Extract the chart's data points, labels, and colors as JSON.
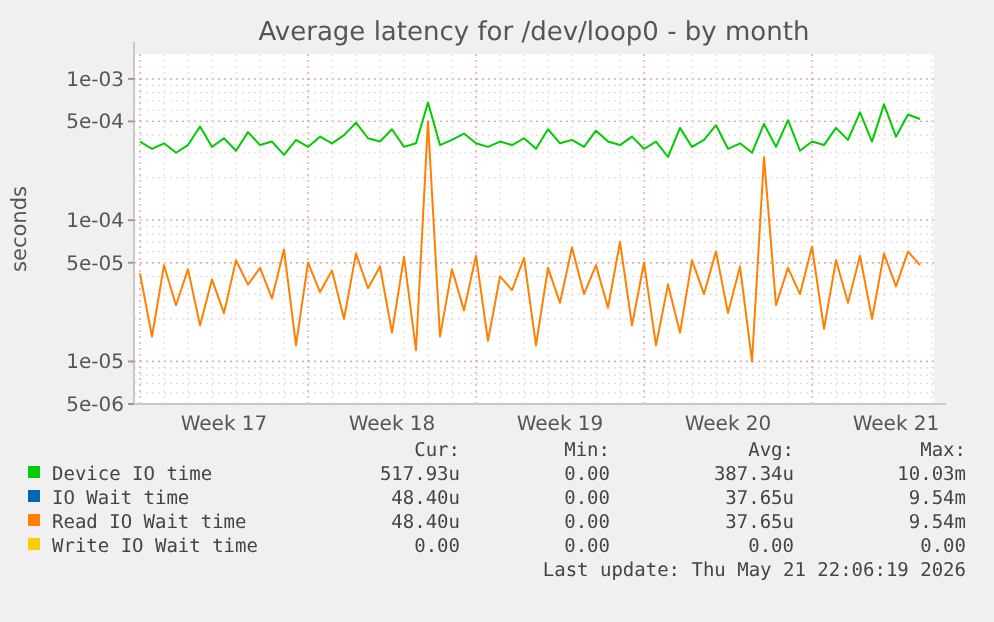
{
  "chart_data": {
    "type": "line",
    "title": "Average latency for /dev/loop0 - by month",
    "ylabel": "seconds",
    "log": "y",
    "grid": true,
    "legend": "bottom",
    "marker": "none",
    "xlim": [
      "2026-04-18T18:00",
      "2026-05-22T02:00"
    ],
    "xticks": [
      {
        "value": "2026-04-22T12:00",
        "label": "Week 17"
      },
      {
        "value": "2026-04-29T12:00",
        "label": "Week 18"
      },
      {
        "value": "2026-05-06T12:00",
        "label": "Week 19"
      },
      {
        "value": "2026-05-13T12:00",
        "label": "Week 20"
      },
      {
        "value": "2026-05-20T12:00",
        "label": "Week 21"
      }
    ],
    "ylim": [
      5e-06,
      0.0015
    ],
    "yticks": [
      {
        "value": 5e-06,
        "label": "5e-06"
      },
      {
        "value": 1e-05,
        "label": "1e-05"
      },
      {
        "value": 5e-05,
        "label": "5e-05"
      },
      {
        "value": 0.0001,
        "label": "1e-04"
      },
      {
        "value": 0.0005,
        "label": "5e-04"
      },
      {
        "value": 0.001,
        "label": "1e-03"
      }
    ],
    "x": [
      "2026-04-19T00:00",
      "2026-04-19T12:00",
      "2026-04-20T00:00",
      "2026-04-20T12:00",
      "2026-04-21T00:00",
      "2026-04-21T12:00",
      "2026-04-22T00:00",
      "2026-04-22T12:00",
      "2026-04-23T00:00",
      "2026-04-23T12:00",
      "2026-04-24T00:00",
      "2026-04-24T12:00",
      "2026-04-25T00:00",
      "2026-04-25T12:00",
      "2026-04-26T00:00",
      "2026-04-26T12:00",
      "2026-04-27T00:00",
      "2026-04-27T12:00",
      "2026-04-28T00:00",
      "2026-04-28T12:00",
      "2026-04-29T00:00",
      "2026-04-29T12:00",
      "2026-04-30T00:00",
      "2026-04-30T12:00",
      "2026-05-01T00:00",
      "2026-05-01T12:00",
      "2026-05-02T00:00",
      "2026-05-02T12:00",
      "2026-05-03T00:00",
      "2026-05-03T12:00",
      "2026-05-04T00:00",
      "2026-05-04T12:00",
      "2026-05-05T00:00",
      "2026-05-05T12:00",
      "2026-05-06T00:00",
      "2026-05-06T12:00",
      "2026-05-07T00:00",
      "2026-05-07T12:00",
      "2026-05-08T00:00",
      "2026-05-08T12:00",
      "2026-05-09T00:00",
      "2026-05-09T12:00",
      "2026-05-10T00:00",
      "2026-05-10T12:00",
      "2026-05-11T00:00",
      "2026-05-11T12:00",
      "2026-05-12T00:00",
      "2026-05-12T12:00",
      "2026-05-13T00:00",
      "2026-05-13T12:00",
      "2026-05-14T00:00",
      "2026-05-14T12:00",
      "2026-05-15T00:00",
      "2026-05-15T12:00",
      "2026-05-16T00:00",
      "2026-05-16T12:00",
      "2026-05-17T00:00",
      "2026-05-17T12:00",
      "2026-05-18T00:00",
      "2026-05-18T12:00",
      "2026-05-19T00:00",
      "2026-05-19T12:00",
      "2026-05-20T00:00",
      "2026-05-20T12:00",
      "2026-05-21T00:00",
      "2026-05-21T12:00"
    ],
    "series": [
      {
        "name": "Device IO time",
        "color": "#00cc00",
        "values": [
          0.00036,
          0.00032,
          0.00035,
          0.0003,
          0.00034,
          0.00046,
          0.00033,
          0.00038,
          0.00031,
          0.00042,
          0.00034,
          0.00036,
          0.00029,
          0.00037,
          0.00033,
          0.00039,
          0.00035,
          0.0004,
          0.00049,
          0.00038,
          0.00036,
          0.00044,
          0.00033,
          0.00035,
          0.00068,
          0.00034,
          0.00037,
          0.00041,
          0.00035,
          0.00033,
          0.00036,
          0.00034,
          0.00038,
          0.00032,
          0.00044,
          0.00035,
          0.00037,
          0.00033,
          0.00043,
          0.00036,
          0.00034,
          0.00039,
          0.00032,
          0.00036,
          0.00028,
          0.00045,
          0.00033,
          0.00037,
          0.00047,
          0.00032,
          0.00035,
          0.0003,
          0.00048,
          0.00033,
          0.00051,
          0.00031,
          0.00036,
          0.00034,
          0.00045,
          0.00037,
          0.00058,
          0.00036,
          0.00066,
          0.00039,
          0.00056,
          0.00052
        ]
      },
      {
        "name": "IO Wait time",
        "color": "#0066b3",
        "values": [
          null,
          null,
          null,
          null,
          null,
          null,
          null,
          null,
          null,
          null,
          null,
          null,
          null,
          null,
          null,
          null,
          null,
          null,
          null,
          null,
          null,
          null,
          null,
          null,
          null,
          null,
          null,
          null,
          null,
          null,
          null,
          null,
          null,
          null,
          null,
          null,
          null,
          null,
          null,
          null,
          null,
          null,
          null,
          null,
          null,
          null,
          null,
          null,
          null,
          null,
          null,
          null,
          null,
          null,
          null,
          null,
          null,
          null,
          null,
          null,
          null,
          null,
          null,
          null,
          null,
          null
        ]
      },
      {
        "name": "Read IO Wait time",
        "color": "#ff8000",
        "values": [
          4.2e-05,
          1.5e-05,
          4.8e-05,
          2.5e-05,
          4.5e-05,
          1.8e-05,
          3.8e-05,
          2.2e-05,
          5.2e-05,
          3.5e-05,
          4.6e-05,
          2.8e-05,
          6.2e-05,
          1.3e-05,
          5e-05,
          3.1e-05,
          4.4e-05,
          2e-05,
          5.8e-05,
          3.3e-05,
          4.7e-05,
          1.6e-05,
          5.5e-05,
          1.2e-05,
          0.0005,
          1.5e-05,
          4.5e-05,
          2.3e-05,
          5.6e-05,
          1.4e-05,
          4e-05,
          3.2e-05,
          5.4e-05,
          1.3e-05,
          4.6e-05,
          2.6e-05,
          6.4e-05,
          3e-05,
          4.8e-05,
          2.4e-05,
          7e-05,
          1.8e-05,
          5e-05,
          1.3e-05,
          3.5e-05,
          1.6e-05,
          5.2e-05,
          3e-05,
          6e-05,
          2.2e-05,
          4.7e-05,
          1e-05,
          0.00028,
          2.5e-05,
          4.6e-05,
          3e-05,
          6.5e-05,
          1.7e-05,
          5.2e-05,
          2.6e-05,
          5.6e-05,
          2e-05,
          5.8e-05,
          3.4e-05,
          6e-05,
          4.8e-05
        ]
      },
      {
        "name": "Write IO Wait time",
        "color": "#ffcc00",
        "values": [
          null,
          null,
          null,
          null,
          null,
          null,
          null,
          null,
          null,
          null,
          null,
          null,
          null,
          null,
          null,
          null,
          null,
          null,
          null,
          null,
          null,
          null,
          null,
          null,
          null,
          null,
          null,
          null,
          null,
          null,
          null,
          null,
          null,
          null,
          null,
          null,
          null,
          null,
          null,
          null,
          null,
          null,
          null,
          null,
          null,
          null,
          null,
          null,
          null,
          null,
          null,
          null,
          null,
          null,
          null,
          null,
          null,
          null,
          null,
          null,
          null,
          null,
          null,
          null,
          null,
          null
        ]
      }
    ],
    "annotations": [
      "Cur:",
      "Min:",
      "Avg:",
      "Max:",
      "517.93u",
      "0.00",
      "387.34u",
      "10.03m",
      "48.40u",
      "0.00",
      "37.65u",
      "9.54m",
      "48.40u",
      "0.00",
      "37.65u",
      "9.54m",
      "0.00",
      "0.00",
      "0.00",
      "0.00",
      "Last update: Thu May 21 22:06:19 2026"
    ]
  }
}
